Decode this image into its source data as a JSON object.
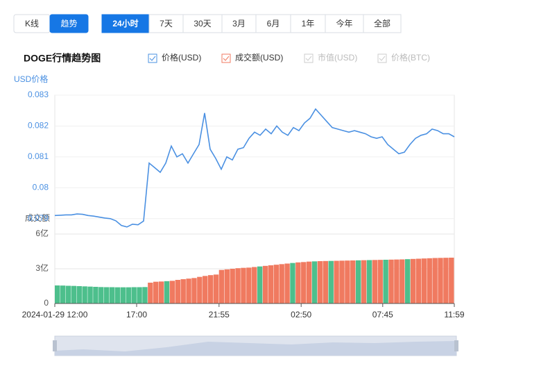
{
  "tabs": [
    "K线",
    "趋势"
  ],
  "periods": [
    "24小时",
    "7天",
    "30天",
    "3月",
    "6月",
    "1年",
    "今年",
    "全部"
  ],
  "legend_disabled": [
    "市值(USD)",
    "价格(BTC)"
  ],
  "chart_data": [
    {
      "type": "line",
      "title": "DOGE行情趋势图",
      "y_label": "USD价格",
      "series": [
        {
          "name": "价格(USD)",
          "color": "#4a90e2",
          "values": [
            0.0791,
            0.07911,
            0.07912,
            0.07912,
            0.07915,
            0.07914,
            0.0791,
            0.07908,
            0.07905,
            0.07902,
            0.079,
            0.07893,
            0.07878,
            0.07873,
            0.07882,
            0.0788,
            0.07892,
            0.0808,
            0.08065,
            0.0805,
            0.0808,
            0.08135,
            0.081,
            0.0811,
            0.0808,
            0.0811,
            0.0814,
            0.08242,
            0.08125,
            0.08095,
            0.0806,
            0.081,
            0.0809,
            0.08125,
            0.0813,
            0.0816,
            0.0818,
            0.0817,
            0.0819,
            0.08175,
            0.082,
            0.0818,
            0.0817,
            0.08195,
            0.08185,
            0.0821,
            0.08225,
            0.08255,
            0.08235,
            0.08215,
            0.08195,
            0.0819,
            0.08185,
            0.0818,
            0.08185,
            0.0818,
            0.08175,
            0.08165,
            0.0816,
            0.08165,
            0.0814,
            0.08125,
            0.0811,
            0.08115,
            0.0814,
            0.0816,
            0.0817,
            0.08175,
            0.0819,
            0.08185,
            0.08175,
            0.08175,
            0.08165
          ]
        }
      ],
      "ylim": [
        0.0785,
        0.083
      ],
      "yticks": [
        0.079,
        0.08,
        0.081,
        0.082,
        0.083
      ],
      "grid": true
    },
    {
      "type": "bar",
      "y_label": "成交额",
      "series": [
        {
          "name": "成交额(USD)",
          "color": "#f07a60",
          "values": [
            1.56,
            1.55,
            1.53,
            1.52,
            1.5,
            1.48,
            1.46,
            1.44,
            1.42,
            1.41,
            1.41,
            1.4,
            1.4,
            1.4,
            1.41,
            1.41,
            1.42,
            1.8,
            1.88,
            1.9,
            1.93,
            1.96,
            2.04,
            2.1,
            2.15,
            2.2,
            2.3,
            2.38,
            2.45,
            2.5,
            2.9,
            2.95,
            3.0,
            3.05,
            3.08,
            3.1,
            3.15,
            3.2,
            3.25,
            3.3,
            3.35,
            3.4,
            3.45,
            3.5,
            3.55,
            3.58,
            3.62,
            3.64,
            3.66,
            3.67,
            3.68,
            3.69,
            3.7,
            3.71,
            3.72,
            3.73,
            3.74,
            3.75,
            3.76,
            3.77,
            3.78,
            3.79,
            3.8,
            3.81,
            3.83,
            3.85,
            3.87,
            3.89,
            3.91,
            3.93,
            3.94,
            3.95,
            3.96
          ],
          "colors": [
            "#4dbf8c",
            "#4dbf8c",
            "#4dbf8c",
            "#4dbf8c",
            "#4dbf8c",
            "#4dbf8c",
            "#4dbf8c",
            "#4dbf8c",
            "#4dbf8c",
            "#4dbf8c",
            "#4dbf8c",
            "#4dbf8c",
            "#4dbf8c",
            "#4dbf8c",
            "#4dbf8c",
            "#4dbf8c",
            "#4dbf8c",
            "#f07a60",
            "#f07a60",
            "#f07a60",
            "#4dbf8c",
            "#f07a60",
            "#f07a60",
            "#f07a60",
            "#f07a60",
            "#f07a60",
            "#f07a60",
            "#f07a60",
            "#f07a60",
            "#f07a60",
            "#f07a60",
            "#f07a60",
            "#f07a60",
            "#f07a60",
            "#f07a60",
            "#f07a60",
            "#f07a60",
            "#4dbf8c",
            "#f07a60",
            "#f07a60",
            "#f07a60",
            "#f07a60",
            "#f07a60",
            "#4dbf8c",
            "#f07a60",
            "#f07a60",
            "#f07a60",
            "#4dbf8c",
            "#f07a60",
            "#f07a60",
            "#4dbf8c",
            "#f07a60",
            "#f07a60",
            "#f07a60",
            "#f07a60",
            "#4dbf8c",
            "#f07a60",
            "#4dbf8c",
            "#f07a60",
            "#f07a60",
            "#4dbf8c",
            "#f07a60",
            "#f07a60",
            "#f07a60",
            "#4dbf8c",
            "#f07a60",
            "#f07a60",
            "#f07a60",
            "#f07a60",
            "#f07a60",
            "#f07a60",
            "#f07a60",
            "#f07a60"
          ]
        }
      ],
      "ylim": [
        0,
        6
      ],
      "yticks": [
        0,
        {
          "value": 3,
          "label": "3亿"
        },
        {
          "value": 6,
          "label": "6亿"
        }
      ],
      "xticks": [
        {
          "value": 0,
          "label": "2024-01-29 12:00"
        },
        {
          "value": 14.75,
          "label": "17:00"
        },
        {
          "value": 29.6,
          "label": "21:55"
        },
        {
          "value": 44.4,
          "label": "02:50"
        },
        {
          "value": 59.1,
          "label": "07:45"
        },
        {
          "value": 72,
          "label": "11:59"
        }
      ]
    }
  ]
}
